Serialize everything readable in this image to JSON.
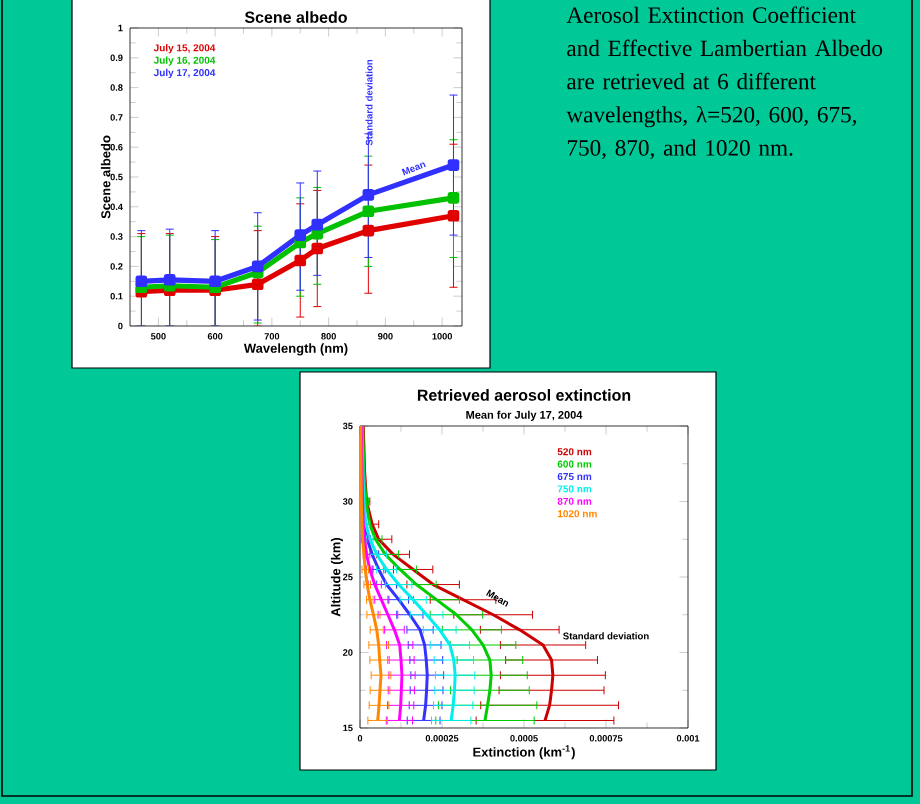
{
  "chart_data": [
    {
      "type": "line",
      "title": "Scene albedo",
      "xlabel": "Wavelength (nm)",
      "ylabel": "Scene albedo",
      "xlim": [
        450,
        1035
      ],
      "xticks": [
        500,
        600,
        700,
        800,
        900,
        1000
      ],
      "ylim": [
        0,
        1
      ],
      "yticks": [
        0,
        0.1,
        0.2,
        0.3,
        0.4,
        0.5,
        0.6,
        0.7,
        0.8,
        0.9,
        1
      ],
      "x": [
        470,
        520,
        600,
        675,
        750,
        780,
        870,
        1020
      ],
      "marker": "square",
      "line_style": "solid",
      "legend": "top left",
      "series": [
        {
          "name": "July 15, 2004",
          "color": "#e00000",
          "values": [
            0.115,
            0.12,
            0.12,
            0.14,
            0.22,
            0.26,
            0.32,
            0.37
          ],
          "errors": [
            [
              0,
              0.31
            ],
            [
              0,
              0.31
            ],
            [
              0,
              0.3
            ],
            [
              0,
              0.32
            ],
            [
              0.03,
              0.41
            ],
            [
              0.065,
              0.455
            ],
            [
              0.11,
              0.54
            ],
            [
              0.13,
              0.61
            ]
          ]
        },
        {
          "name": "July 16, 2004",
          "color": "#00c000",
          "values": [
            0.13,
            0.135,
            0.13,
            0.18,
            0.28,
            0.31,
            0.385,
            0.43
          ],
          "errors": [
            [
              0,
              0.3
            ],
            [
              0,
              0.305
            ],
            [
              0,
              0.29
            ],
            [
              0.01,
              0.335
            ],
            [
              0.1,
              0.43
            ],
            [
              0.14,
              0.465
            ],
            [
              0.2,
              0.57
            ],
            [
              0.23,
              0.625
            ]
          ]
        },
        {
          "name": "July 17, 2004",
          "color": "#3030ff",
          "values": [
            0.15,
            0.155,
            0.15,
            0.2,
            0.305,
            0.34,
            0.44,
            0.54
          ],
          "errors": [
            [
              0,
              0.32
            ],
            [
              0,
              0.325
            ],
            [
              0,
              0.32
            ],
            [
              0.02,
              0.38
            ],
            [
              0.12,
              0.48
            ],
            [
              0.17,
              0.52
            ],
            [
              0.23,
              0.645
            ],
            [
              0.305,
              0.775
            ]
          ]
        }
      ],
      "annotations": [
        "Standard deviation",
        {
          "text": "Mean",
          "x": 950,
          "y": 0.53
        }
      ]
    },
    {
      "type": "line",
      "title": "Retrieved aerosol extinction",
      "subtitle": "Mean for July 17, 2004",
      "xlabel": "Extinction (km$^{-1}$)",
      "ylabel": "Altitude (km)",
      "xlim": [
        0,
        0.001
      ],
      "xticks": [
        0,
        0.00025,
        0.0005,
        0.00075,
        0.001
      ],
      "ylim": [
        15,
        35
      ],
      "yticks": [
        15,
        20,
        25,
        30,
        35
      ],
      "line_style": "solid",
      "legend": "top right",
      "series": [
        {
          "name": "520 nm",
          "color": "#cc0000",
          "x": [
            0.000564,
            0.000578,
            0.000584,
            0.000588,
            0.000584,
            0.000558,
            0.000487,
            0.000406,
            0.000314,
            0.000223,
            0.000162,
            0.000101,
            5.7e-05,
            3.7e-05,
            2e-05,
            1.4e-05,
            1e-05
          ],
          "values": [
            15.5,
            16.5,
            17.5,
            18.5,
            19.5,
            20.5,
            21.5,
            22.5,
            23.5,
            24.5,
            25.5,
            26.5,
            27.5,
            28.5,
            30,
            32,
            35
          ],
          "xerrors": [
            0.00021,
            0.00021,
            0.00016,
            0.00016,
            0.00014,
            0.00013,
            0.00012,
            0.00012,
            0.0001,
            8e-05,
            6e-05,
            5e-05,
            4e-05,
            2e-05,
            1e-05,
            null,
            null
          ]
        },
        {
          "name": "600 nm",
          "color": "#00cc00",
          "x": [
            0.000381,
            0.000389,
            0.000396,
            0.0004,
            0.000396,
            0.000375,
            0.000341,
            0.000294,
            0.000233,
            0.000172,
            0.000122,
            7.7e-05,
            4.7e-05,
            3e-05,
            1.8e-05,
            1.2e-05,
            8e-06
          ],
          "values": [
            15.5,
            16.5,
            17.5,
            18.5,
            19.5,
            20.5,
            21.5,
            22.5,
            23.5,
            24.5,
            25.5,
            26.5,
            27.5,
            28.5,
            30,
            32,
            35
          ],
          "xerrors": [
            0.00015,
            0.00015,
            0.00012,
            0.00011,
            0.0001,
            0.0001,
            9e-05,
            8e-05,
            7e-05,
            6e-05,
            5e-05,
            4e-05,
            2e-05,
            null,
            8e-06,
            null,
            null
          ]
        },
        {
          "name": "675 nm",
          "color": "#3333ff",
          "x": [
            0.000194,
            0.0002,
            0.000203,
            0.000205,
            0.000202,
            0.000197,
            0.000183,
            0.000152,
            0.000118,
            8.1e-05,
            5.7e-05,
            3.7e-05,
            2.2e-05,
            1.4e-05,
            1e-05,
            8e-06,
            6e-06
          ],
          "values": [
            15.5,
            16.5,
            17.5,
            18.5,
            19.5,
            20.5,
            21.5,
            22.5,
            23.5,
            24.5,
            25.5,
            26.5,
            27.5,
            28.5,
            30,
            32,
            35
          ],
          "xerrors": [
            5e-05,
            5e-05,
            5e-05,
            5e-05,
            5e-05,
            5e-05,
            4e-05,
            4e-05,
            3e-05,
            3e-05,
            2e-05,
            2e-05,
            1e-05,
            null,
            null,
            null,
            null
          ]
        },
        {
          "name": "750 nm",
          "color": "#00eeee",
          "x": [
            0.000278,
            0.000284,
            0.000288,
            0.00029,
            0.000286,
            0.000274,
            0.000243,
            0.000203,
            0.000162,
            0.000118,
            8.1e-05,
            5.1e-05,
            3e-05,
            1.8e-05,
            1.2e-05,
            9e-06,
            6e-06
          ],
          "values": [
            15.5,
            16.5,
            17.5,
            18.5,
            19.5,
            20.5,
            21.5,
            22.5,
            23.5,
            24.5,
            25.5,
            26.5,
            27.5,
            28.5,
            30,
            32,
            35
          ],
          "xerrors": [
            6e-05,
            6e-05,
            6e-05,
            6e-05,
            6e-05,
            6e-05,
            5e-05,
            5e-05,
            4e-05,
            4e-05,
            3e-05,
            3e-05,
            1e-05,
            1e-05,
            null,
            null,
            null
          ]
        },
        {
          "name": "870 nm",
          "color": "#ff00ff",
          "x": [
            0.00012,
            0.000124,
            0.000126,
            0.000128,
            0.000125,
            0.000121,
            0.000105,
            8.5e-05,
            6.5e-05,
            4.5e-05,
            3e-05,
            2e-05,
            1.4e-05,
            1e-05,
            8e-06,
            6e-06,
            4e-06
          ],
          "values": [
            15.5,
            16.5,
            17.5,
            18.5,
            19.5,
            20.5,
            21.5,
            22.5,
            23.5,
            24.5,
            25.5,
            26.5,
            27.5,
            28.5,
            30,
            32,
            35
          ],
          "xerrors": [
            4e-05,
            4e-05,
            4e-05,
            4e-05,
            4e-05,
            4e-05,
            3e-05,
            3e-05,
            2e-05,
            2e-05,
            1e-05,
            1e-05,
            1e-05,
            null,
            null,
            null,
            null
          ]
        },
        {
          "name": "1020 nm",
          "color": "#ff8800",
          "x": [
            5.4e-05,
            5.8e-05,
            6.1e-05,
            6.4e-05,
            6e-05,
            5.7e-05,
            5.1e-05,
            4.1e-05,
            3e-05,
            2.2e-05,
            1.6e-05,
            1.2e-05,
            8e-06,
            6e-06,
            4e-06,
            3e-06,
            2e-06
          ],
          "values": [
            15.5,
            16.5,
            17.5,
            18.5,
            19.5,
            20.5,
            21.5,
            22.5,
            23.5,
            24.5,
            25.5,
            26.5,
            27.5,
            28.5,
            30,
            32,
            35
          ],
          "xerrors": [
            3e-05,
            3e-05,
            3e-05,
            3e-05,
            3e-05,
            3e-05,
            2e-05,
            2e-05,
            1e-05,
            1e-05,
            1e-05,
            null,
            null,
            null,
            null,
            null,
            null
          ]
        }
      ],
      "annotations": [
        {
          "text": "Mean",
          "x": 0.00042,
          "y": 23.6
        },
        "Standard deviation"
      ]
    },
    {
      "type": "other",
      "annotations": [
        "Aerosol Extinction Coefficient and Effective Lambertian Albedo are retrieved at 6 different wavelengths, λ=520, 600, 675, 750, 870, and 1020 nm."
      ]
    }
  ]
}
